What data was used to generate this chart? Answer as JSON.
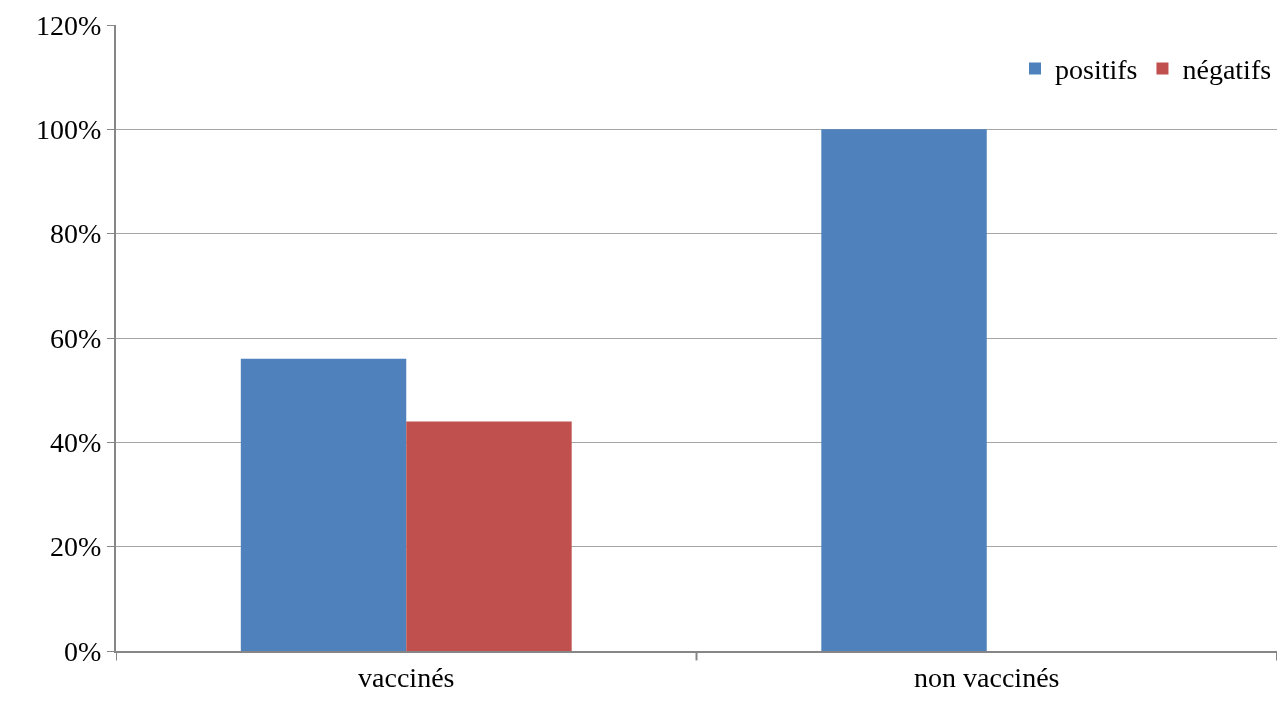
{
  "chart_data": {
    "type": "bar",
    "categories": [
      "vaccinés",
      "non vaccinés"
    ],
    "series": [
      {
        "name": "positifs",
        "color": "#4f81bd",
        "values": [
          56,
          100
        ]
      },
      {
        "name": "négatifs",
        "color": "#c0504d",
        "values": [
          44,
          0
        ]
      }
    ],
    "ylim": [
      0,
      120
    ],
    "yticks": [
      {
        "value": 0,
        "label": "0%"
      },
      {
        "value": 20,
        "label": "20%"
      },
      {
        "value": 40,
        "label": "40%"
      },
      {
        "value": 60,
        "label": "60%"
      },
      {
        "value": 80,
        "label": "80%"
      },
      {
        "value": 100,
        "label": "100%"
      },
      {
        "value": 120,
        "label": "120%"
      }
    ],
    "grid": "y",
    "legend": "top right"
  }
}
